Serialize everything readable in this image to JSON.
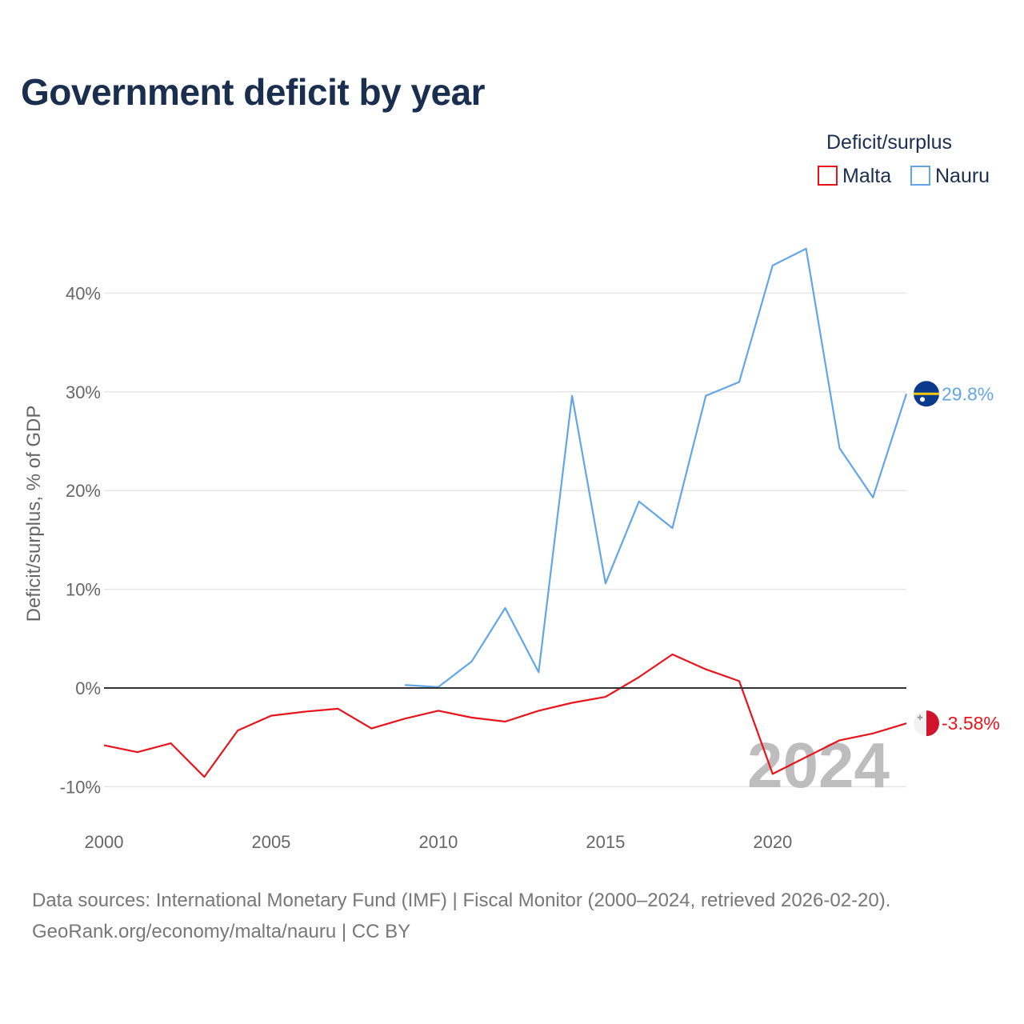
{
  "chart_data": {
    "type": "line",
    "title": "Government deficit by year",
    "ylabel": "Deficit/surplus, % of GDP",
    "xlabel": "",
    "xlim": [
      2000,
      2024
    ],
    "ylim": [
      -12,
      48
    ],
    "x_ticks": [
      2000,
      2005,
      2010,
      2015,
      2020
    ],
    "x_tick_labels": [
      "2000",
      "2005",
      "2010",
      "2015",
      "2020"
    ],
    "y_ticks": [
      -10,
      0,
      10,
      20,
      30,
      40
    ],
    "y_tick_labels": [
      "-10%",
      "0%",
      "10%",
      "20%",
      "30%",
      "40%"
    ],
    "legend": {
      "title": "Deficit/surplus",
      "position": "top-right"
    },
    "year_label": "2024",
    "series": [
      {
        "name": "Malta",
        "color": "#e8141c",
        "end_label": "-3.58%",
        "flag_icon": "malta-flag-icon",
        "x": [
          2000,
          2001,
          2002,
          2003,
          2004,
          2005,
          2006,
          2007,
          2008,
          2009,
          2010,
          2011,
          2012,
          2013,
          2014,
          2015,
          2016,
          2017,
          2018,
          2019,
          2020,
          2021,
          2022,
          2023,
          2024
        ],
        "values": [
          -5.8,
          -6.5,
          -5.6,
          -9.0,
          -4.3,
          -2.8,
          -2.4,
          -2.1,
          -4.1,
          -3.1,
          -2.3,
          -3.0,
          -3.4,
          -2.3,
          -1.5,
          -0.9,
          1.1,
          3.4,
          1.9,
          0.7,
          -8.7,
          -7.0,
          -5.3,
          -4.6,
          -3.58
        ]
      },
      {
        "name": "Nauru",
        "color": "#63a5e6",
        "end_label": "29.8%",
        "flag_icon": "nauru-flag-icon",
        "x": [
          2009,
          2010,
          2011,
          2012,
          2013,
          2014,
          2015,
          2016,
          2017,
          2018,
          2019,
          2020,
          2021,
          2022,
          2023,
          2024
        ],
        "values": [
          0.3,
          0.1,
          2.7,
          8.1,
          1.6,
          29.6,
          10.6,
          18.9,
          16.2,
          29.6,
          31.0,
          42.8,
          44.5,
          24.3,
          19.3,
          29.8
        ]
      }
    ]
  },
  "footer": {
    "sources": "Data sources: International Monetary Fund (IMF) | Fiscal Monitor (2000–2024, retrieved 2026-02-20).",
    "credit": "GeoRank.org/economy/malta/nauru | CC BY"
  }
}
